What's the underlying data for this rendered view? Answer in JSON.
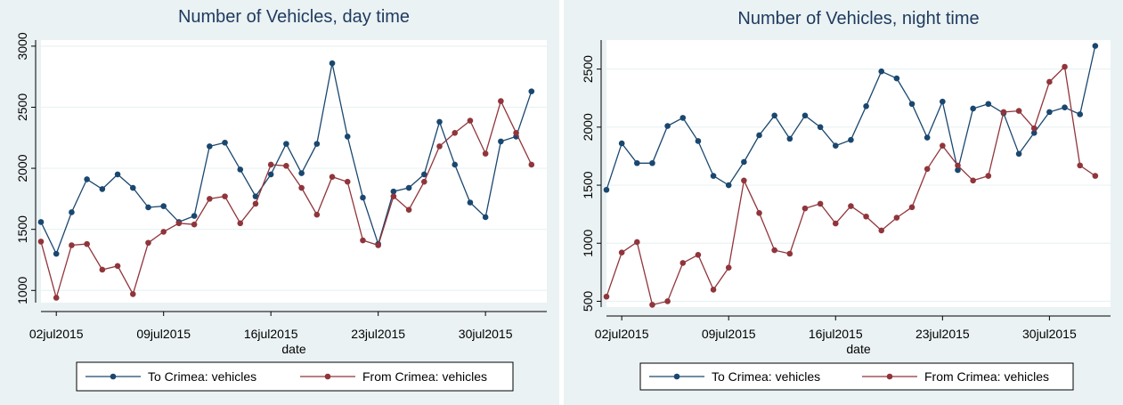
{
  "colors": {
    "to": "#1a476f",
    "from": "#90353b",
    "plot_bg": "#ffffff",
    "panel_bg": "#eaf2f3",
    "grid": "#eaf2f3"
  },
  "chart_data": [
    {
      "type": "line",
      "title": "Number of Vehicles, day time",
      "xlabel": "date",
      "ylabel": "",
      "x_tick_labels": [
        "02jul2015",
        "09jul2015",
        "16jul2015",
        "23jul2015",
        "30jul2015"
      ],
      "x_tick_days": [
        2,
        9,
        16,
        23,
        30
      ],
      "x_start_day": 1,
      "x_end_day": 34,
      "ylim": [
        900,
        3050
      ],
      "y_ticks": [
        1000,
        1500,
        2000,
        2500,
        3000
      ],
      "grid": true,
      "legend_position": "bottom",
      "series": [
        {
          "name": "To Crimea: vehicles",
          "color": "#1a476f",
          "values": [
            1560,
            1300,
            1640,
            1910,
            1830,
            1950,
            1840,
            1680,
            1690,
            1560,
            1610,
            2180,
            2210,
            1990,
            1770,
            1950,
            2200,
            1960,
            2200,
            2860,
            2260,
            1760,
            1380,
            1810,
            1840,
            1950,
            2380,
            2030,
            1720,
            1600,
            2220,
            2260,
            2630
          ]
        },
        {
          "name": "From Crimea: vehicles",
          "color": "#90353b",
          "values": [
            1400,
            940,
            1370,
            1380,
            1170,
            1200,
            970,
            1390,
            1480,
            1550,
            1540,
            1750,
            1770,
            1550,
            1710,
            2030,
            2020,
            1840,
            1620,
            1930,
            1890,
            1410,
            1370,
            1770,
            1660,
            1890,
            2180,
            2290,
            2390,
            2120,
            2550,
            2290,
            2030
          ]
        }
      ]
    },
    {
      "type": "line",
      "title": "Number of Vehicles, night time",
      "xlabel": "date",
      "ylabel": "",
      "x_tick_labels": [
        "02jul2015",
        "09jul2015",
        "16jul2015",
        "23jul2015",
        "30jul2015"
      ],
      "x_tick_days": [
        2,
        9,
        16,
        23,
        30
      ],
      "x_start_day": 1,
      "x_end_day": 34,
      "ylim": [
        450,
        2750
      ],
      "y_ticks": [
        500,
        1000,
        1500,
        2000,
        2500
      ],
      "grid": true,
      "legend_position": "bottom",
      "series": [
        {
          "name": "To Crimea: vehicles",
          "color": "#1a476f",
          "values": [
            1460,
            1860,
            1690,
            1690,
            2010,
            2080,
            1880,
            1580,
            1500,
            1700,
            1930,
            2100,
            1900,
            2100,
            2000,
            1840,
            1890,
            2180,
            2480,
            2420,
            2200,
            1910,
            2220,
            1630,
            2160,
            2200,
            2120,
            1770,
            1950,
            2130,
            2170,
            2110,
            2700
          ]
        },
        {
          "name": "From Crimea: vehicles",
          "color": "#90353b",
          "values": [
            540,
            920,
            1010,
            470,
            500,
            830,
            900,
            600,
            790,
            1540,
            1260,
            940,
            910,
            1300,
            1340,
            1170,
            1320,
            1230,
            1110,
            1220,
            1310,
            1640,
            1840,
            1670,
            1540,
            1580,
            2130,
            2140,
            1990,
            2390,
            2520,
            1670,
            1580
          ]
        }
      ]
    }
  ]
}
